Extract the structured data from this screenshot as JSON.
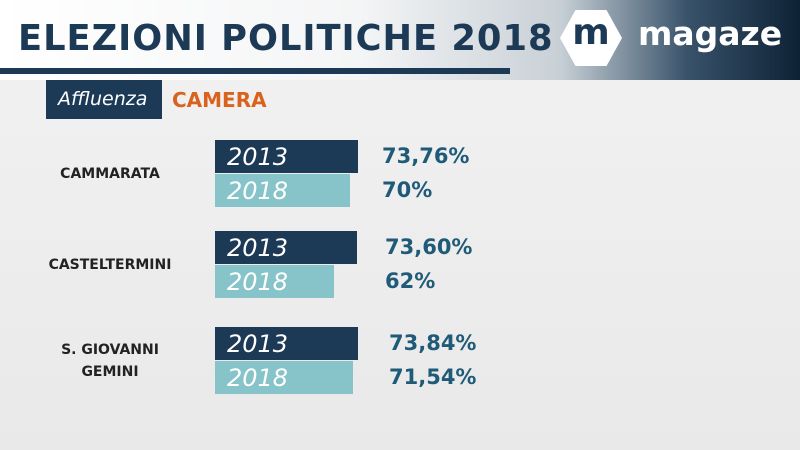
{
  "header": {
    "title": "ELEZIONI POLITICHE 2018",
    "logo_mark": "m",
    "logo_word": "magaze"
  },
  "subheader": {
    "label": "Affluenza",
    "chamber": "CAMERA"
  },
  "colors": {
    "bar_2013": "#1c3a56",
    "bar_2018": "#86c4c9",
    "text_on_2013": "#ffffff",
    "text_on_2018": "#ffffff",
    "value_text": "#1f5a78",
    "accent": "#d9631e"
  },
  "chart_data": {
    "type": "bar",
    "orientation": "horizontal",
    "title": "Affluenza CAMERA",
    "categories": [
      "CAMMARATA",
      "CASTELTERMINI",
      "S. GIOVANNI GEMINI"
    ],
    "category_labels": [
      [
        "CAMMARATA"
      ],
      [
        "CASTELTERMINI"
      ],
      [
        "S. GIOVANNI",
        "GEMINI"
      ]
    ],
    "series": [
      {
        "name": "2013",
        "values": [
          73.76,
          73.6,
          73.84
        ],
        "labels": [
          "73,76%",
          "73,60%",
          "73,84%"
        ]
      },
      {
        "name": "2018",
        "values": [
          70,
          62,
          71.54
        ],
        "labels": [
          "70%",
          "62%",
          "71,54%"
        ]
      }
    ],
    "value_unit": "%"
  }
}
